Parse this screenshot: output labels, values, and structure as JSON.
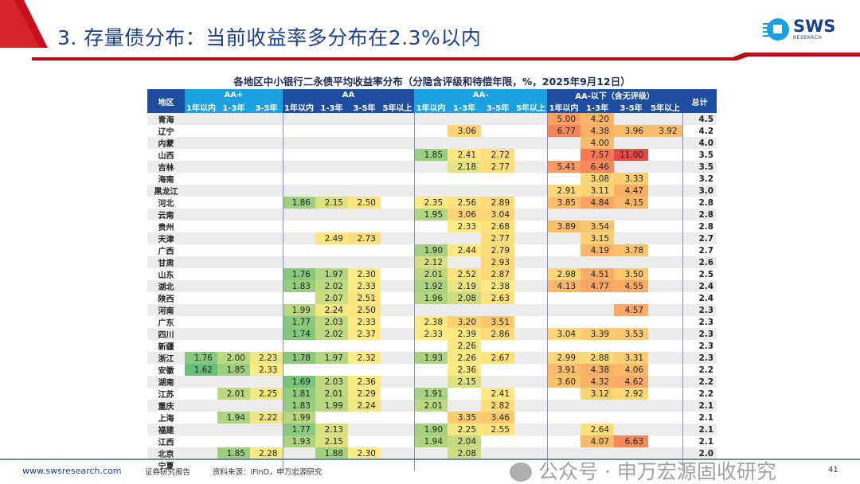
{
  "header": {
    "title": "3. 存量债分布：当前收益率多分布在2.3%以内",
    "logo_text": "SWS",
    "logo_sub": "RESEARCH",
    "accent": "#c8101a",
    "brand": "#1b3f8f"
  },
  "table": {
    "title": "各地区中小银行二永债平均收益率分布（分隐含评级和待偿年限，%，2025年9月12日）",
    "region_header": "地区",
    "total_header": "总计",
    "groups": [
      {
        "label": "AA+",
        "cols": [
          "1年以内",
          "1-3年",
          "3-5年"
        ]
      },
      {
        "label": "AA",
        "cols": [
          "1年以内",
          "1-3年",
          "3-5年",
          "5年以上"
        ]
      },
      {
        "label": "AA-",
        "cols": [
          "1年以内",
          "1-3年",
          "3-5年",
          "5年以上"
        ]
      },
      {
        "label": "AA-以下（含无评级）",
        "cols": [
          "1年以内",
          "1-3年",
          "3-5年",
          "5年以上"
        ]
      }
    ],
    "rows": [
      {
        "region": "青海",
        "v": [
          null,
          null,
          null,
          null,
          null,
          null,
          null,
          null,
          null,
          null,
          null,
          "5.00",
          "4.20",
          null,
          null
        ],
        "total": "4.5"
      },
      {
        "region": "辽宁",
        "v": [
          null,
          null,
          null,
          null,
          null,
          null,
          null,
          null,
          "3.06",
          null,
          null,
          "6.77",
          "4.38",
          "3.96",
          "3.92"
        ],
        "total": "4.2"
      },
      {
        "region": "内蒙",
        "v": [
          null,
          null,
          null,
          null,
          null,
          null,
          null,
          null,
          null,
          null,
          null,
          null,
          "4.00",
          null,
          null
        ],
        "total": "4.0"
      },
      {
        "region": "山西",
        "v": [
          null,
          null,
          null,
          null,
          null,
          null,
          null,
          "1.85",
          "2.41",
          "2.72",
          null,
          null,
          "7.57",
          "11.00",
          null
        ],
        "total": "3.5"
      },
      {
        "region": "吉林",
        "v": [
          null,
          null,
          null,
          null,
          null,
          null,
          null,
          null,
          "2.18",
          "2.77",
          null,
          "5.41",
          "6.46",
          null,
          null
        ],
        "total": "3.5"
      },
      {
        "region": "海南",
        "v": [
          null,
          null,
          null,
          null,
          null,
          null,
          null,
          null,
          null,
          null,
          null,
          null,
          "3.08",
          "3.33",
          null
        ],
        "total": "3.2"
      },
      {
        "region": "黑龙江",
        "v": [
          null,
          null,
          null,
          null,
          null,
          null,
          null,
          null,
          null,
          null,
          null,
          "2.91",
          "3.11",
          "4.47",
          null
        ],
        "total": "3.0"
      },
      {
        "region": "河北",
        "v": [
          null,
          null,
          null,
          "1.86",
          "2.15",
          "2.50",
          null,
          "2.35",
          "2.56",
          "2.89",
          null,
          "3.85",
          "4.84",
          "4.15",
          null
        ],
        "total": "2.8"
      },
      {
        "region": "云南",
        "v": [
          null,
          null,
          null,
          null,
          null,
          null,
          null,
          "1.95",
          "3.06",
          "3.04",
          null,
          null,
          null,
          null,
          null
        ],
        "total": "2.8"
      },
      {
        "region": "贵州",
        "v": [
          null,
          null,
          null,
          null,
          null,
          null,
          null,
          null,
          "2.33",
          "2.68",
          null,
          "3.89",
          "3.54",
          null,
          null
        ],
        "total": "2.8"
      },
      {
        "region": "天津",
        "v": [
          null,
          null,
          null,
          null,
          "2.49",
          "2.73",
          null,
          null,
          null,
          "2.77",
          null,
          null,
          "3.15",
          null,
          null
        ],
        "total": "2.7"
      },
      {
        "region": "广西",
        "v": [
          null,
          null,
          null,
          null,
          null,
          null,
          null,
          "1.90",
          "2.44",
          "2.79",
          null,
          null,
          "4.19",
          "3.78",
          null
        ],
        "total": "2.7"
      },
      {
        "region": "甘肃",
        "v": [
          null,
          null,
          null,
          null,
          null,
          null,
          null,
          "2.12",
          null,
          "2.93",
          null,
          null,
          null,
          null,
          null
        ],
        "total": "2.6"
      },
      {
        "region": "山东",
        "v": [
          null,
          null,
          null,
          "1.76",
          "1.97",
          "2.30",
          null,
          "2.01",
          "2.52",
          "2.87",
          null,
          "2.98",
          "4.51",
          "3.50",
          null
        ],
        "total": "2.5"
      },
      {
        "region": "湖北",
        "v": [
          null,
          null,
          null,
          "1.83",
          "2.02",
          "2.33",
          null,
          "1.92",
          "2.19",
          "2.38",
          null,
          "4.13",
          "4.77",
          "4.55",
          null
        ],
        "total": "2.4"
      },
      {
        "region": "陕西",
        "v": [
          null,
          null,
          null,
          null,
          "2.07",
          "2.51",
          null,
          "1.96",
          "2.08",
          "2.63",
          null,
          null,
          null,
          null,
          null
        ],
        "total": "2.4"
      },
      {
        "region": "河南",
        "v": [
          null,
          null,
          null,
          "1.99",
          "2.24",
          "2.50",
          null,
          null,
          null,
          null,
          null,
          null,
          null,
          "4.57",
          null
        ],
        "total": "2.3"
      },
      {
        "region": "广东",
        "v": [
          null,
          null,
          null,
          "1.77",
          "2.03",
          "2.33",
          null,
          "2.38",
          "3.20",
          "3.51",
          null,
          null,
          null,
          null,
          null
        ],
        "total": "2.3"
      },
      {
        "region": "四川",
        "v": [
          null,
          null,
          null,
          "1.74",
          "2.02",
          "2.37",
          null,
          "2.33",
          "2.39",
          "2.86",
          null,
          "3.04",
          "3.39",
          "3.53",
          null
        ],
        "total": "2.3"
      },
      {
        "region": "新疆",
        "v": [
          null,
          null,
          null,
          null,
          null,
          null,
          null,
          null,
          "2.26",
          null,
          null,
          null,
          null,
          null,
          null
        ],
        "total": "2.3"
      },
      {
        "region": "浙江",
        "v": [
          "1.76",
          "2.00",
          "2.23",
          "1.78",
          "1.97",
          "2.32",
          null,
          "1.93",
          "2.26",
          "2.67",
          null,
          "2.99",
          "2.88",
          "3.31",
          null
        ],
        "total": "2.3"
      },
      {
        "region": "安徽",
        "v": [
          "1.62",
          "1.85",
          "2.33",
          null,
          null,
          null,
          null,
          null,
          "2.36",
          null,
          null,
          "3.91",
          "4.38",
          "4.06",
          null
        ],
        "total": "2.2"
      },
      {
        "region": "湖南",
        "v": [
          null,
          null,
          null,
          "1.69",
          "2.03",
          "2.36",
          null,
          null,
          "2.15",
          null,
          null,
          "3.60",
          "4.32",
          "4.62",
          null
        ],
        "total": "2.2"
      },
      {
        "region": "江苏",
        "v": [
          null,
          "2.01",
          "2.25",
          "1.81",
          "2.01",
          "2.29",
          null,
          "1.91",
          null,
          "2.41",
          null,
          null,
          "3.12",
          "2.92",
          null
        ],
        "total": "2.2"
      },
      {
        "region": "重庆",
        "v": [
          null,
          null,
          null,
          "1.83",
          "1.99",
          "2.24",
          null,
          "2.01",
          null,
          "2.82",
          null,
          null,
          null,
          null,
          null
        ],
        "total": "2.1"
      },
      {
        "region": "上海",
        "v": [
          null,
          "1.94",
          "2.22",
          "1.99",
          null,
          null,
          null,
          null,
          "3.35",
          "3.46",
          null,
          null,
          null,
          null,
          null
        ],
        "total": "2.1"
      },
      {
        "region": "福建",
        "v": [
          null,
          null,
          null,
          "1.77",
          "2.13",
          null,
          null,
          "1.90",
          "2.25",
          "2.55",
          null,
          null,
          "2.64",
          null,
          null
        ],
        "total": "2.1"
      },
      {
        "region": "江西",
        "v": [
          null,
          null,
          null,
          "1.93",
          "2.15",
          null,
          null,
          "1.94",
          "2.04",
          null,
          null,
          null,
          "4.07",
          "6.63",
          null
        ],
        "total": "2.1"
      },
      {
        "region": "北京",
        "v": [
          null,
          "1.85",
          "2.28",
          null,
          "1.88",
          "2.30",
          null,
          null,
          "2.08",
          null,
          null,
          null,
          null,
          null,
          null
        ],
        "total": "2.0"
      },
      {
        "region": "宁夏",
        "v": [
          null,
          null,
          null,
          null,
          null,
          null,
          null,
          null,
          null,
          null,
          null,
          null,
          null,
          null,
          null
        ],
        "total": null
      }
    ]
  },
  "footer": {
    "site": "www.swsresearch.com",
    "report": "证券研究报告",
    "source": "资料来源：iFinD，申万宏源研究",
    "page": "41"
  },
  "watermark": "公众号 · 申万宏源固收研究"
}
